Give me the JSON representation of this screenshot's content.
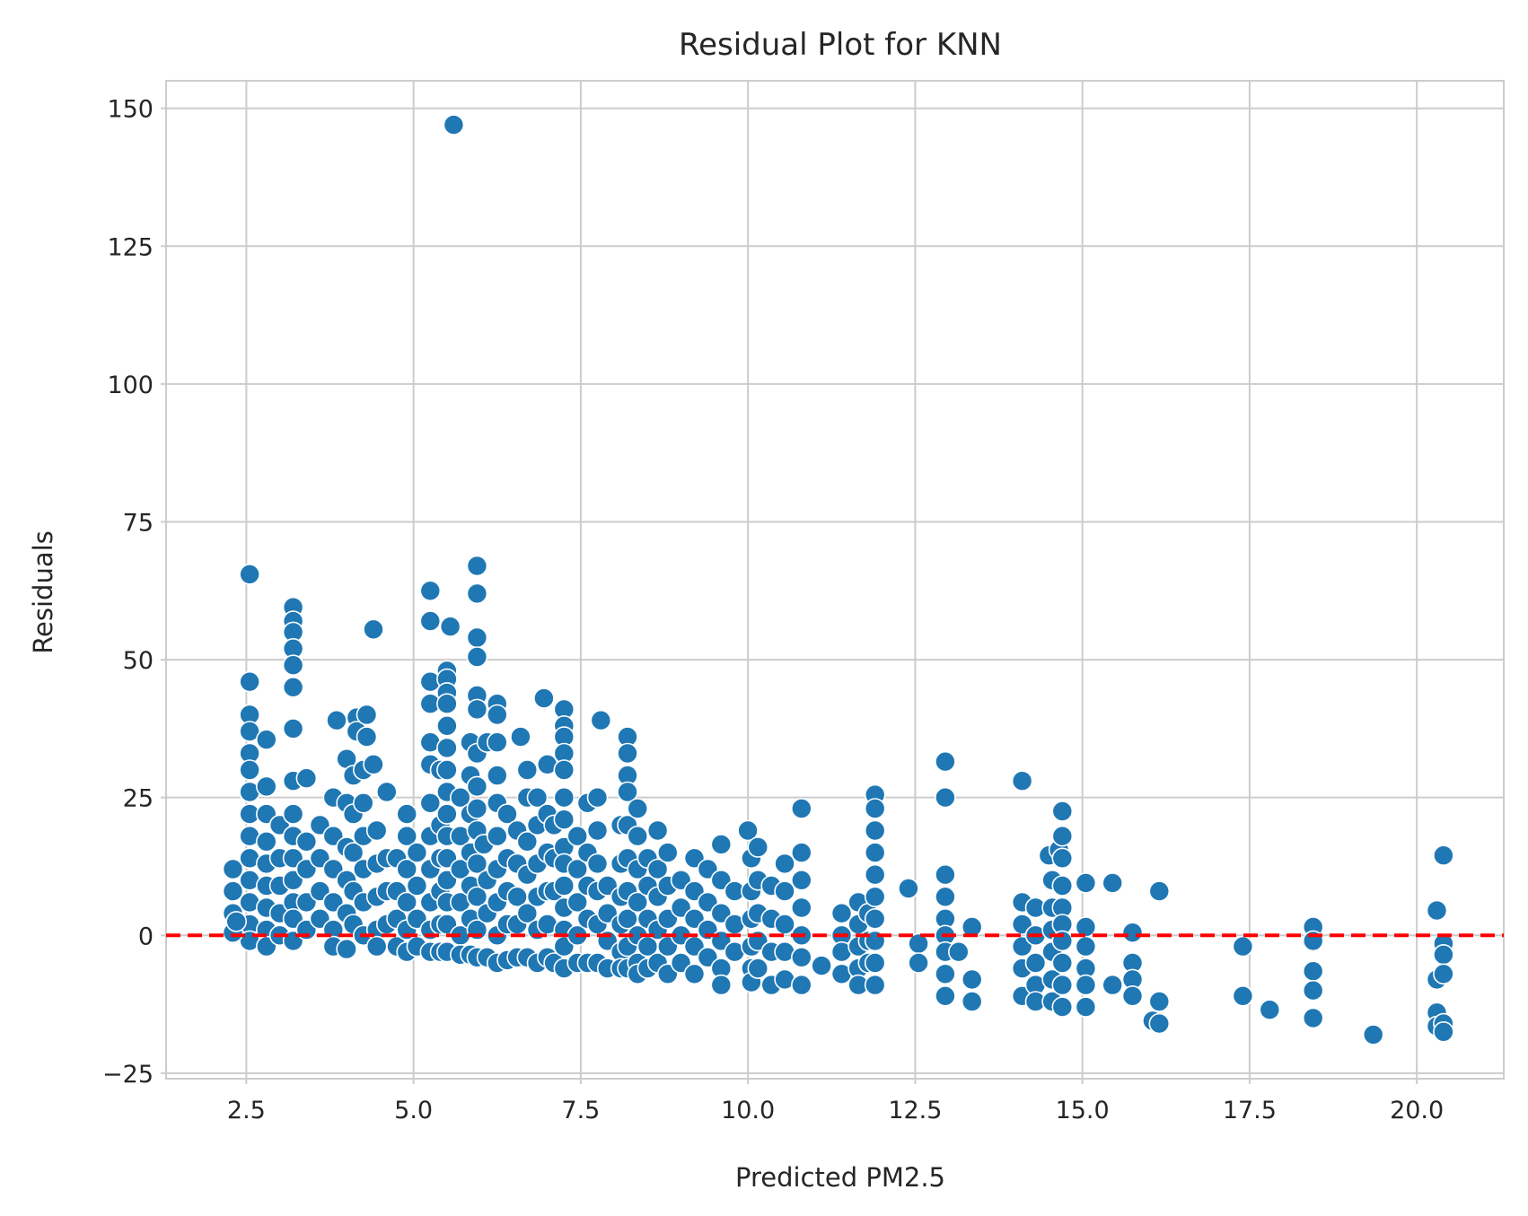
{
  "chart_data": {
    "type": "scatter",
    "title": "Residual Plot for KNN",
    "xlabel": "Predicted PM2.5",
    "ylabel": "Residuals",
    "xlim": [
      1.3,
      21.3
    ],
    "ylim": [
      -26,
      155
    ],
    "xticks": [
      2.5,
      5.0,
      7.5,
      10.0,
      12.5,
      15.0,
      17.5,
      20.0
    ],
    "xtick_labels": [
      "2.5",
      "5.0",
      "7.5",
      "10.0",
      "12.5",
      "15.0",
      "17.5",
      "20.0"
    ],
    "yticks": [
      -25,
      0,
      25,
      50,
      75,
      100,
      125,
      150
    ],
    "ytick_labels": [
      "−25",
      "0",
      "25",
      "50",
      "75",
      "100",
      "125",
      "150"
    ],
    "grid": true,
    "marker_color": "#1f77b4",
    "marker_edge": "#ffffff",
    "reference_line": {
      "y": 0,
      "style": "dashed",
      "color": "#ff0000"
    },
    "points": [
      [
        5.6,
        147
      ],
      [
        2.55,
        65.5
      ],
      [
        3.2,
        59.5
      ],
      [
        3.2,
        57
      ],
      [
        3.2,
        55
      ],
      [
        3.2,
        52
      ],
      [
        3.2,
        49
      ],
      [
        3.2,
        45
      ],
      [
        3.2,
        37.5
      ],
      [
        5.25,
        62.5
      ],
      [
        5.25,
        57
      ],
      [
        5.55,
        56
      ],
      [
        5.95,
        67
      ],
      [
        5.95,
        62
      ],
      [
        5.95,
        54
      ],
      [
        5.95,
        50.5
      ],
      [
        4.4,
        55.5
      ],
      [
        2.55,
        46
      ],
      [
        2.55,
        40
      ],
      [
        2.55,
        37
      ],
      [
        2.55,
        33
      ],
      [
        2.55,
        30
      ],
      [
        2.55,
        26
      ],
      [
        2.55,
        22
      ],
      [
        2.55,
        18
      ],
      [
        2.55,
        14
      ],
      [
        2.55,
        10
      ],
      [
        2.55,
        6
      ],
      [
        2.55,
        2
      ],
      [
        2.55,
        -1
      ],
      [
        2.3,
        12
      ],
      [
        2.3,
        8
      ],
      [
        2.3,
        4
      ],
      [
        2.3,
        0.5
      ],
      [
        2.35,
        2.5
      ],
      [
        2.8,
        35.5
      ],
      [
        2.8,
        27
      ],
      [
        2.8,
        22
      ],
      [
        2.8,
        17
      ],
      [
        2.8,
        13
      ],
      [
        2.8,
        9
      ],
      [
        2.8,
        5
      ],
      [
        2.8,
        1
      ],
      [
        2.8,
        -2
      ],
      [
        3.0,
        20
      ],
      [
        3.0,
        14
      ],
      [
        3.0,
        9
      ],
      [
        3.0,
        4
      ],
      [
        3.0,
        0
      ],
      [
        3.2,
        28
      ],
      [
        3.2,
        22
      ],
      [
        3.2,
        18
      ],
      [
        3.2,
        14
      ],
      [
        3.2,
        10
      ],
      [
        3.2,
        6
      ],
      [
        3.2,
        3
      ],
      [
        3.2,
        -1
      ],
      [
        3.4,
        28.5
      ],
      [
        3.4,
        17
      ],
      [
        3.4,
        12
      ],
      [
        3.4,
        6
      ],
      [
        3.4,
        1
      ],
      [
        3.6,
        20
      ],
      [
        3.6,
        14
      ],
      [
        3.6,
        8
      ],
      [
        3.6,
        3
      ],
      [
        3.85,
        39
      ],
      [
        3.8,
        25
      ],
      [
        3.8,
        18
      ],
      [
        3.8,
        12
      ],
      [
        3.8,
        6
      ],
      [
        3.8,
        1
      ],
      [
        3.8,
        -2
      ],
      [
        4.0,
        32
      ],
      [
        4.0,
        24
      ],
      [
        4.0,
        16
      ],
      [
        4.0,
        10
      ],
      [
        4.0,
        4
      ],
      [
        4.0,
        -2.5
      ],
      [
        4.15,
        39.5
      ],
      [
        4.15,
        37
      ],
      [
        4.1,
        29
      ],
      [
        4.1,
        22
      ],
      [
        4.1,
        15
      ],
      [
        4.1,
        8
      ],
      [
        4.1,
        2
      ],
      [
        4.3,
        40
      ],
      [
        4.3,
        36
      ],
      [
        4.25,
        30
      ],
      [
        4.25,
        24
      ],
      [
        4.25,
        18
      ],
      [
        4.25,
        12
      ],
      [
        4.25,
        6
      ],
      [
        4.25,
        0
      ],
      [
        4.4,
        31
      ],
      [
        4.45,
        19
      ],
      [
        4.45,
        13
      ],
      [
        4.45,
        7
      ],
      [
        4.45,
        1
      ],
      [
        4.45,
        -2
      ],
      [
        4.6,
        26
      ],
      [
        4.6,
        14
      ],
      [
        4.6,
        8
      ],
      [
        4.6,
        2
      ],
      [
        4.75,
        14
      ],
      [
        4.75,
        8
      ],
      [
        4.75,
        3
      ],
      [
        4.75,
        -2
      ],
      [
        4.9,
        22
      ],
      [
        4.9,
        18
      ],
      [
        4.9,
        12
      ],
      [
        4.9,
        6
      ],
      [
        4.9,
        1
      ],
      [
        4.9,
        -3
      ],
      [
        5.05,
        15
      ],
      [
        5.05,
        9
      ],
      [
        5.05,
        3
      ],
      [
        5.05,
        -2
      ],
      [
        5.25,
        46
      ],
      [
        5.25,
        42
      ],
      [
        5.25,
        35
      ],
      [
        5.25,
        31
      ],
      [
        5.25,
        24
      ],
      [
        5.25,
        18
      ],
      [
        5.25,
        12
      ],
      [
        5.25,
        6
      ],
      [
        5.25,
        1
      ],
      [
        5.25,
        -3
      ],
      [
        5.4,
        30
      ],
      [
        5.4,
        20
      ],
      [
        5.4,
        14
      ],
      [
        5.4,
        8
      ],
      [
        5.4,
        2
      ],
      [
        5.4,
        -3
      ],
      [
        5.5,
        48
      ],
      [
        5.5,
        46.5
      ],
      [
        5.5,
        44
      ],
      [
        5.5,
        42
      ],
      [
        5.5,
        38
      ],
      [
        5.5,
        34
      ],
      [
        5.5,
        30
      ],
      [
        5.5,
        26
      ],
      [
        5.5,
        22
      ],
      [
        5.5,
        18
      ],
      [
        5.5,
        14
      ],
      [
        5.5,
        10
      ],
      [
        5.5,
        6
      ],
      [
        5.5,
        2
      ],
      [
        5.5,
        -3
      ],
      [
        5.7,
        25
      ],
      [
        5.7,
        18
      ],
      [
        5.7,
        12
      ],
      [
        5.7,
        6
      ],
      [
        5.7,
        0
      ],
      [
        5.7,
        -3.5
      ],
      [
        5.85,
        35
      ],
      [
        5.85,
        29
      ],
      [
        5.85,
        22
      ],
      [
        5.85,
        15
      ],
      [
        5.85,
        9
      ],
      [
        5.85,
        3
      ],
      [
        5.85,
        -3.5
      ],
      [
        5.95,
        43.5
      ],
      [
        5.95,
        41
      ],
      [
        5.95,
        33
      ],
      [
        5.95,
        27
      ],
      [
        5.95,
        23
      ],
      [
        5.95,
        19
      ],
      [
        5.95,
        13
      ],
      [
        5.95,
        7
      ],
      [
        5.95,
        1
      ],
      [
        5.95,
        -4
      ],
      [
        6.05,
        16.5
      ],
      [
        6.1,
        35
      ],
      [
        6.1,
        10
      ],
      [
        6.1,
        4
      ],
      [
        6.1,
        -4
      ],
      [
        6.25,
        42
      ],
      [
        6.25,
        40
      ],
      [
        6.25,
        35
      ],
      [
        6.25,
        29
      ],
      [
        6.25,
        24
      ],
      [
        6.25,
        18
      ],
      [
        6.25,
        12
      ],
      [
        6.25,
        6
      ],
      [
        6.25,
        0
      ],
      [
        6.25,
        -5
      ],
      [
        6.4,
        22
      ],
      [
        6.4,
        14
      ],
      [
        6.4,
        8
      ],
      [
        6.4,
        2
      ],
      [
        6.4,
        -4.5
      ],
      [
        6.6,
        36
      ],
      [
        6.55,
        19
      ],
      [
        6.55,
        13
      ],
      [
        6.55,
        7
      ],
      [
        6.55,
        2
      ],
      [
        6.55,
        -4
      ],
      [
        6.7,
        30
      ],
      [
        6.7,
        25
      ],
      [
        6.7,
        17
      ],
      [
        6.7,
        11
      ],
      [
        6.7,
        4
      ],
      [
        6.7,
        -4
      ],
      [
        6.85,
        20
      ],
      [
        6.85,
        25
      ],
      [
        6.85,
        13
      ],
      [
        6.85,
        7
      ],
      [
        6.85,
        1
      ],
      [
        6.85,
        -5
      ],
      [
        6.95,
        43
      ],
      [
        7.0,
        31
      ],
      [
        7.0,
        22
      ],
      [
        7.0,
        15
      ],
      [
        7.0,
        8
      ],
      [
        7.0,
        2
      ],
      [
        7.0,
        -4
      ],
      [
        7.1,
        20
      ],
      [
        7.1,
        14
      ],
      [
        7.1,
        8
      ],
      [
        7.1,
        -5
      ],
      [
        7.25,
        41
      ],
      [
        7.25,
        38
      ],
      [
        7.25,
        36
      ],
      [
        7.25,
        33
      ],
      [
        7.25,
        30
      ],
      [
        7.25,
        25
      ],
      [
        7.25,
        21
      ],
      [
        7.25,
        16
      ],
      [
        7.25,
        13
      ],
      [
        7.25,
        9
      ],
      [
        7.25,
        5
      ],
      [
        7.25,
        1
      ],
      [
        7.25,
        -2
      ],
      [
        7.25,
        -6
      ],
      [
        7.45,
        18
      ],
      [
        7.45,
        12
      ],
      [
        7.45,
        6
      ],
      [
        7.45,
        0
      ],
      [
        7.45,
        -5
      ],
      [
        7.6,
        24
      ],
      [
        7.6,
        15
      ],
      [
        7.6,
        9
      ],
      [
        7.6,
        3
      ],
      [
        7.6,
        -5
      ],
      [
        7.8,
        39
      ],
      [
        7.75,
        25
      ],
      [
        7.75,
        19
      ],
      [
        7.75,
        13
      ],
      [
        7.75,
        8
      ],
      [
        7.75,
        2
      ],
      [
        7.75,
        -5
      ],
      [
        7.9,
        9
      ],
      [
        7.9,
        4
      ],
      [
        7.9,
        -1
      ],
      [
        7.9,
        -6
      ],
      [
        8.1,
        20
      ],
      [
        8.1,
        13
      ],
      [
        8.1,
        7
      ],
      [
        8.1,
        2
      ],
      [
        8.1,
        -3
      ],
      [
        8.1,
        -6
      ],
      [
        8.2,
        36
      ],
      [
        8.2,
        33
      ],
      [
        8.2,
        29
      ],
      [
        8.2,
        26
      ],
      [
        8.2,
        20
      ],
      [
        8.2,
        14
      ],
      [
        8.2,
        8
      ],
      [
        8.2,
        3
      ],
      [
        8.2,
        -2
      ],
      [
        8.2,
        -6
      ],
      [
        8.35,
        23
      ],
      [
        8.35,
        18
      ],
      [
        8.35,
        12
      ],
      [
        8.35,
        6
      ],
      [
        8.35,
        0
      ],
      [
        8.35,
        -5
      ],
      [
        8.35,
        -7
      ],
      [
        8.5,
        14
      ],
      [
        8.5,
        9
      ],
      [
        8.5,
        3
      ],
      [
        8.5,
        -2
      ],
      [
        8.5,
        -6
      ],
      [
        8.65,
        19
      ],
      [
        8.65,
        12
      ],
      [
        8.65,
        7
      ],
      [
        8.65,
        1
      ],
      [
        8.65,
        -5
      ],
      [
        8.8,
        15
      ],
      [
        8.8,
        9
      ],
      [
        8.8,
        3
      ],
      [
        8.8,
        -2
      ],
      [
        8.8,
        -7
      ],
      [
        9.0,
        10
      ],
      [
        9.0,
        5
      ],
      [
        9.0,
        0
      ],
      [
        9.0,
        -5
      ],
      [
        9.2,
        14
      ],
      [
        9.2,
        8
      ],
      [
        9.2,
        3
      ],
      [
        9.2,
        -2
      ],
      [
        9.2,
        -7
      ],
      [
        9.4,
        12
      ],
      [
        9.4,
        6
      ],
      [
        9.4,
        1
      ],
      [
        9.4,
        -4
      ],
      [
        9.6,
        16.5
      ],
      [
        9.6,
        10
      ],
      [
        9.6,
        4
      ],
      [
        9.6,
        -1
      ],
      [
        9.6,
        -6
      ],
      [
        9.6,
        -9
      ],
      [
        9.8,
        8
      ],
      [
        9.8,
        2
      ],
      [
        9.8,
        -3
      ],
      [
        10.0,
        19
      ],
      [
        10.05,
        14
      ],
      [
        10.05,
        8
      ],
      [
        10.05,
        3
      ],
      [
        10.05,
        -2
      ],
      [
        10.05,
        -6
      ],
      [
        10.05,
        -8.5
      ],
      [
        10.15,
        16
      ],
      [
        10.15,
        10
      ],
      [
        10.15,
        4
      ],
      [
        10.15,
        -1
      ],
      [
        10.15,
        -6
      ],
      [
        10.35,
        9
      ],
      [
        10.35,
        3
      ],
      [
        10.35,
        -3
      ],
      [
        10.35,
        -9
      ],
      [
        10.55,
        13
      ],
      [
        10.55,
        8
      ],
      [
        10.55,
        2
      ],
      [
        10.55,
        -3
      ],
      [
        10.55,
        -8
      ],
      [
        10.8,
        23
      ],
      [
        10.8,
        15
      ],
      [
        10.8,
        10
      ],
      [
        10.8,
        5
      ],
      [
        10.8,
        0
      ],
      [
        10.8,
        -4
      ],
      [
        10.8,
        -9
      ],
      [
        11.1,
        -5.5
      ],
      [
        11.4,
        4
      ],
      [
        11.4,
        0
      ],
      [
        11.4,
        -3
      ],
      [
        11.4,
        -7
      ],
      [
        11.65,
        6
      ],
      [
        11.65,
        2
      ],
      [
        11.65,
        -2
      ],
      [
        11.65,
        -6
      ],
      [
        11.65,
        -9
      ],
      [
        11.8,
        4
      ],
      [
        11.8,
        -1
      ],
      [
        11.8,
        -5
      ],
      [
        11.9,
        25.5
      ],
      [
        11.9,
        23
      ],
      [
        11.9,
        19
      ],
      [
        11.9,
        15
      ],
      [
        11.9,
        11
      ],
      [
        11.9,
        7
      ],
      [
        11.9,
        3
      ],
      [
        11.9,
        -1
      ],
      [
        11.9,
        -5
      ],
      [
        11.9,
        -9
      ],
      [
        12.4,
        8.5
      ],
      [
        12.55,
        -1.5
      ],
      [
        12.55,
        -5
      ],
      [
        12.95,
        31.5
      ],
      [
        12.95,
        25
      ],
      [
        12.95,
        11
      ],
      [
        12.95,
        7
      ],
      [
        12.95,
        3
      ],
      [
        12.95,
        0
      ],
      [
        12.95,
        -3
      ],
      [
        12.95,
        -7
      ],
      [
        12.95,
        -11
      ],
      [
        13.15,
        -3
      ],
      [
        13.35,
        1.5
      ],
      [
        13.35,
        -8
      ],
      [
        13.35,
        -12
      ],
      [
        14.1,
        28
      ],
      [
        14.1,
        6
      ],
      [
        14.1,
        2
      ],
      [
        14.1,
        -2
      ],
      [
        14.1,
        -6
      ],
      [
        14.1,
        -11
      ],
      [
        14.3,
        5
      ],
      [
        14.3,
        0
      ],
      [
        14.3,
        -5
      ],
      [
        14.3,
        -9
      ],
      [
        14.3,
        -12
      ],
      [
        14.5,
        14.5
      ],
      [
        14.55,
        10
      ],
      [
        14.55,
        5
      ],
      [
        14.55,
        1
      ],
      [
        14.55,
        -3
      ],
      [
        14.55,
        -8
      ],
      [
        14.55,
        -12
      ],
      [
        14.65,
        15.5
      ],
      [
        14.7,
        22.5
      ],
      [
        14.7,
        18
      ],
      [
        14.7,
        14
      ],
      [
        14.7,
        9
      ],
      [
        14.7,
        5
      ],
      [
        14.7,
        2
      ],
      [
        14.7,
        -1
      ],
      [
        14.7,
        -5
      ],
      [
        14.7,
        -9
      ],
      [
        14.7,
        -13
      ],
      [
        15.05,
        9.5
      ],
      [
        15.05,
        1.5
      ],
      [
        15.05,
        -2
      ],
      [
        15.05,
        -6
      ],
      [
        15.05,
        -9
      ],
      [
        15.05,
        -13
      ],
      [
        15.45,
        9.5
      ],
      [
        15.45,
        -9
      ],
      [
        15.75,
        0.5
      ],
      [
        15.75,
        -5
      ],
      [
        15.75,
        -8
      ],
      [
        15.75,
        -11
      ],
      [
        16.05,
        -15.5
      ],
      [
        16.15,
        8
      ],
      [
        16.15,
        -12
      ],
      [
        16.15,
        -16
      ],
      [
        17.4,
        -2
      ],
      [
        17.4,
        -11
      ],
      [
        17.8,
        -13.5
      ],
      [
        18.45,
        1.5
      ],
      [
        18.45,
        -1
      ],
      [
        18.45,
        -6.5
      ],
      [
        18.45,
        -10
      ],
      [
        18.45,
        -15
      ],
      [
        19.35,
        -18
      ],
      [
        20.3,
        4.5
      ],
      [
        20.3,
        -8
      ],
      [
        20.3,
        -14
      ],
      [
        20.3,
        -16.5
      ],
      [
        20.4,
        14.5
      ],
      [
        20.4,
        -1.5
      ],
      [
        20.4,
        -3.5
      ],
      [
        20.4,
        -7
      ],
      [
        20.4,
        -16
      ],
      [
        20.4,
        -17.5
      ]
    ]
  }
}
